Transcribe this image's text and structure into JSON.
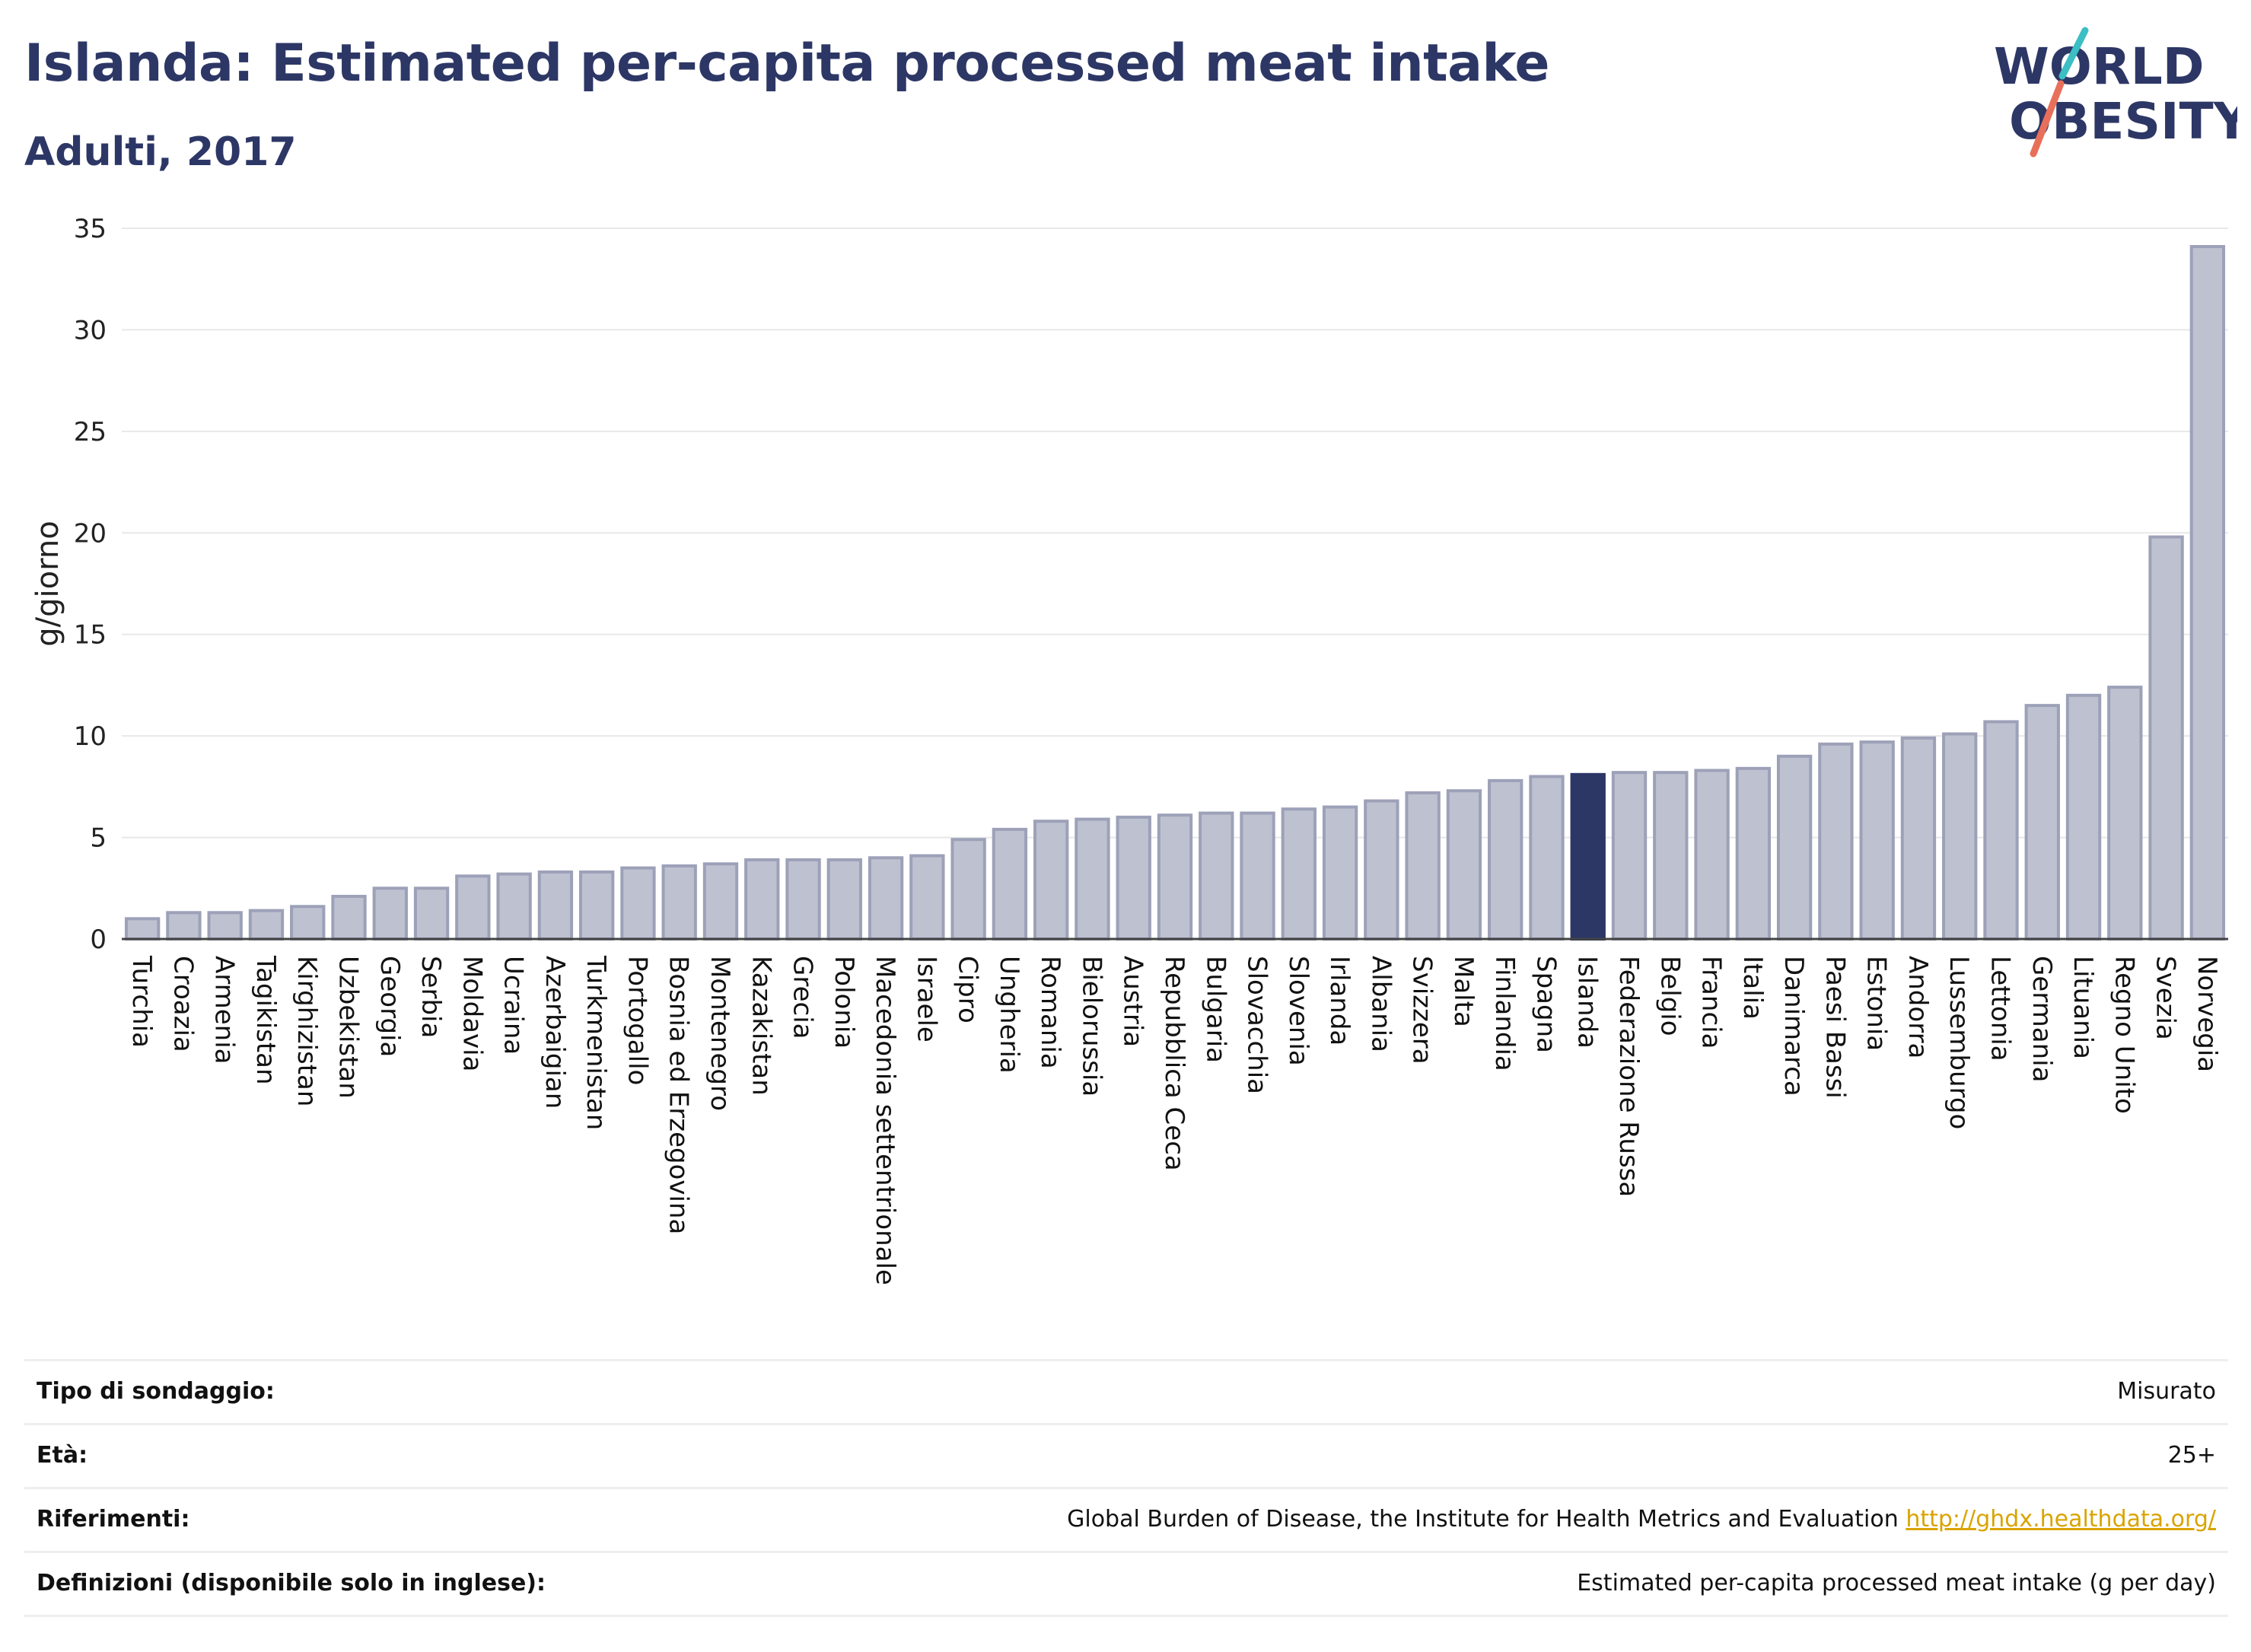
{
  "header": {
    "title": "Islanda: Estimated per-capita processed meat intake",
    "subtitle": "Adulti, 2017"
  },
  "logo": {
    "line1": "WORLD",
    "line2": "OBESITY"
  },
  "colors": {
    "bar_fill": "#bec1d0",
    "bar_stroke": "#9da1b8",
    "highlight": "#2d3766",
    "grid": "#e8e8e8",
    "logo_teal": "#3bbfc4",
    "logo_coral": "#e8705a"
  },
  "chart_data": {
    "type": "bar",
    "title": "Islanda: Estimated per-capita processed meat intake",
    "subtitle": "Adulti, 2017",
    "ylabel": "g/giorno",
    "xlabel": "",
    "ylim": [
      0,
      35
    ],
    "yticks": [
      0,
      5,
      10,
      15,
      20,
      25,
      30,
      35
    ],
    "grid": true,
    "highlight": "Islanda",
    "categories": [
      "Turchia",
      "Croazia",
      "Armenia",
      "Tagikistan",
      "Kirghizistan",
      "Uzbekistan",
      "Georgia",
      "Serbia",
      "Moldavia",
      "Ucraina",
      "Azerbaigian",
      "Turkmenistan",
      "Portogallo",
      "Bosnia ed Erzegovina",
      "Montenegro",
      "Kazakistan",
      "Grecia",
      "Polonia",
      "Macedonia settentrionale",
      "Israele",
      "Cipro",
      "Ungheria",
      "Romania",
      "Bielorussia",
      "Austria",
      "Repubblica Ceca",
      "Bulgaria",
      "Slovacchia",
      "Slovenia",
      "Irlanda",
      "Albania",
      "Svizzera",
      "Malta",
      "Finlandia",
      "Spagna",
      "Islanda",
      "Federazione Russa",
      "Belgio",
      "Francia",
      "Italia",
      "Danimarca",
      "Paesi Bassi",
      "Estonia",
      "Andorra",
      "Lussemburgo",
      "Lettonia",
      "Germania",
      "Lituania",
      "Regno Unito",
      "Svezia",
      "Norvegia"
    ],
    "values": [
      1.0,
      1.3,
      1.3,
      1.4,
      1.6,
      2.1,
      2.5,
      2.5,
      3.1,
      3.2,
      3.3,
      3.3,
      3.5,
      3.6,
      3.7,
      3.9,
      3.9,
      3.9,
      4.0,
      4.1,
      4.9,
      5.4,
      5.8,
      5.9,
      6.0,
      6.1,
      6.2,
      6.2,
      6.4,
      6.5,
      6.8,
      7.2,
      7.3,
      7.8,
      8.0,
      8.1,
      8.2,
      8.2,
      8.3,
      8.4,
      9.0,
      9.6,
      9.7,
      9.9,
      10.1,
      10.7,
      11.5,
      12.0,
      12.4,
      19.8,
      34.1
    ]
  },
  "info": [
    {
      "label": "Tipo di sondaggio:",
      "value": "Misurato",
      "link": ""
    },
    {
      "label": "Età:",
      "value": "25+",
      "link": ""
    },
    {
      "label": "Riferimenti:",
      "value": "Global Burden of Disease, the Institute for Health Metrics and Evaluation",
      "link": "http://ghdx.healthdata.org/"
    },
    {
      "label": "Definizioni (disponibile solo in inglese):",
      "value": "Estimated per-capita processed meat intake (g per day)",
      "link": ""
    }
  ]
}
